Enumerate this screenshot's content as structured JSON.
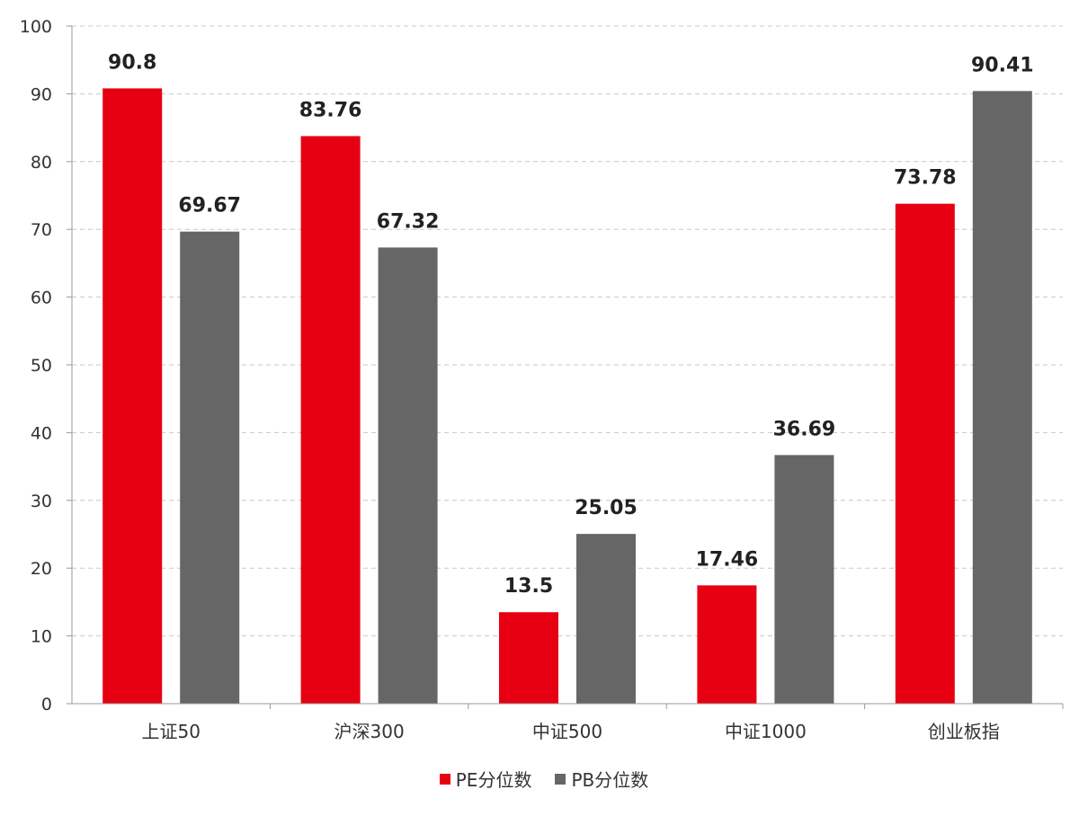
{
  "chart_data": {
    "type": "bar",
    "categories": [
      "上证50",
      "沪深300",
      "中证500",
      "中证1000",
      "创业板指"
    ],
    "series": [
      {
        "name": "PE分位数",
        "values": [
          90.8,
          83.76,
          13.5,
          17.46,
          73.78
        ],
        "color": "#e60012"
      },
      {
        "name": "PB分位数",
        "values": [
          69.67,
          67.32,
          25.05,
          36.69,
          90.41
        ],
        "color": "#666666"
      }
    ],
    "yticks": [
      "0",
      "10",
      "20",
      "30",
      "40",
      "50",
      "60",
      "70",
      "80",
      "90",
      "100"
    ],
    "ylim": [
      0,
      100
    ],
    "grid": true,
    "legend_position": "bottom"
  }
}
